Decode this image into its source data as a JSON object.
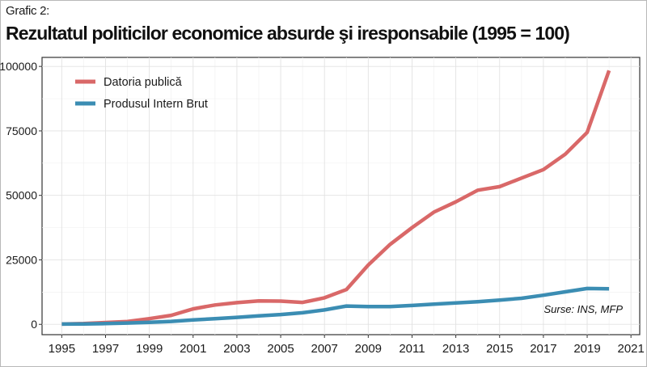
{
  "header": {
    "kicker": "Grafic 2:",
    "title": "Rezultatul politicilor economice absurde şi iresponsabile (1995 = 100)"
  },
  "chart_data": {
    "type": "line",
    "x": [
      1995,
      1996,
      1997,
      1998,
      1999,
      2000,
      2001,
      2002,
      2003,
      2004,
      2005,
      2006,
      2007,
      2008,
      2009,
      2010,
      2011,
      2012,
      2013,
      2014,
      2015,
      2016,
      2017,
      2018,
      2019,
      2020
    ],
    "series": [
      {
        "name": "Datoria publică",
        "color": "#d96868",
        "values": [
          100,
          300,
          700,
          1100,
          2200,
          3500,
          6000,
          7500,
          8400,
          9100,
          9000,
          8500,
          10300,
          13500,
          23000,
          31000,
          37500,
          43500,
          47500,
          52000,
          53400,
          56700,
          60000,
          66000,
          74400,
          98400
        ]
      },
      {
        "name": "Produsul Intern Brut",
        "color": "#3b8db3",
        "values": [
          100,
          150,
          300,
          500,
          800,
          1150,
          1700,
          2200,
          2700,
          3300,
          3800,
          4500,
          5600,
          7100,
          6900,
          6900,
          7300,
          7800,
          8300,
          8800,
          9400,
          10100,
          11300,
          12600,
          13900,
          13800
        ]
      }
    ],
    "xticks": [
      "1995",
      "1997",
      "1999",
      "2001",
      "2003",
      "2005",
      "2007",
      "2009",
      "2011",
      "2013",
      "2015",
      "2017",
      "2019",
      "2021"
    ],
    "yticks": [
      "0",
      "25000",
      "50000",
      "75000",
      "100000"
    ],
    "xlim": [
      1994.1,
      2021.4
    ],
    "ylim": [
      -4000,
      103500
    ],
    "grid": true,
    "legend_position": "top-left",
    "annotation": "Surse: INS, MFP"
  }
}
